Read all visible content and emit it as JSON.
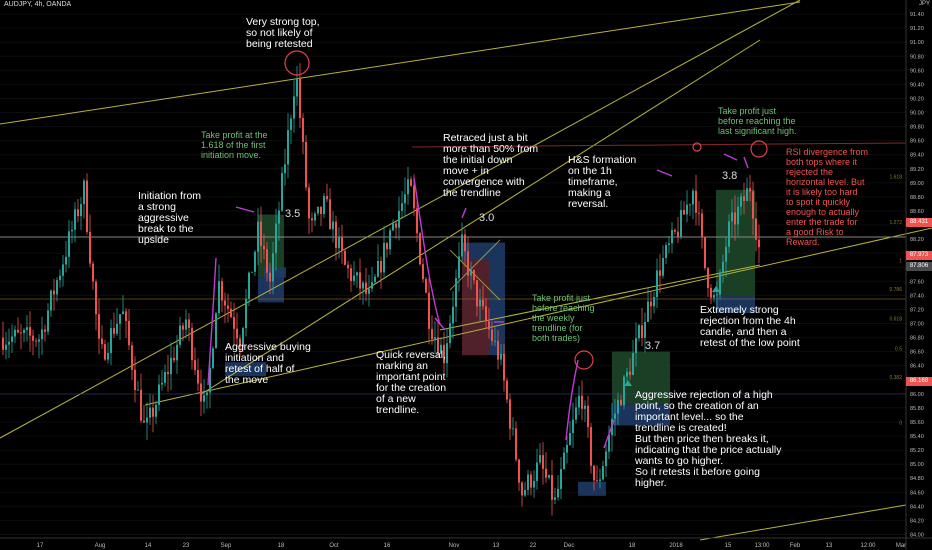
{
  "header": {
    "symbol": "AUDJPY, 4h, OANDA"
  },
  "axis": {
    "currency": "JPY"
  },
  "chart_data": {
    "type": "candlestick",
    "ylim": [
      83.95,
      91.6
    ],
    "y_ticks": [
      84.0,
      84.2,
      84.4,
      84.6,
      84.8,
      85.0,
      85.2,
      85.4,
      85.6,
      85.8,
      86.0,
      86.2,
      86.4,
      86.6,
      86.8,
      87.0,
      87.2,
      87.4,
      87.6,
      87.8,
      88.0,
      88.2,
      88.4,
      88.6,
      88.8,
      89.0,
      89.2,
      89.4,
      89.6,
      89.8,
      90.0,
      90.2,
      90.4,
      90.6,
      90.8,
      91.0,
      91.2,
      91.4
    ],
    "x_ticks": [
      "17",
      "Aug",
      "14",
      "23",
      "Sep",
      "18",
      "Oct",
      "16",
      "Nov",
      "13",
      "22",
      "Dec",
      "18",
      "2018",
      "15",
      "13:00",
      "Feb",
      "13",
      "12:00",
      "Mar"
    ],
    "x_tick_positions": [
      40,
      100,
      148,
      186,
      226,
      281,
      334,
      387,
      454,
      496,
      533,
      569,
      632,
      676,
      728,
      762,
      795,
      829,
      868,
      901
    ],
    "price_tags": [
      {
        "value": "88.431",
        "color": "#ef5350",
        "price": 88.43
      },
      {
        "value": "87.973",
        "color": "#ef5350",
        "price": 87.97
      },
      {
        "value": "87.806",
        "color": "#4a4a4a",
        "price": 87.81
      },
      {
        "value": "86.168",
        "color": "#ef5350",
        "price": 86.17
      }
    ],
    "fib_labels": [
      {
        "text": "1.618",
        "price": 89.05
      },
      {
        "text": "1.272",
        "price": 88.4
      },
      {
        "text": "1",
        "price": 87.85
      },
      {
        "text": "0.786",
        "price": 87.45
      },
      {
        "text": "0.618",
        "price": 87.03
      },
      {
        "text": "0.5",
        "price": 86.6
      },
      {
        "text": "0.382",
        "price": 86.2
      },
      {
        "text": "0",
        "price": 85.55
      }
    ],
    "key_points": [
      {
        "x": 40,
        "price": 86.8
      },
      {
        "x": 84,
        "price": 88.9
      },
      {
        "x": 100,
        "price": 86.5
      },
      {
        "x": 122,
        "price": 87.2
      },
      {
        "x": 145,
        "price": 85.45
      },
      {
        "x": 186,
        "price": 87.05
      },
      {
        "x": 206,
        "price": 85.7
      },
      {
        "x": 218,
        "price": 87.6
      },
      {
        "x": 240,
        "price": 86.8
      },
      {
        "x": 258,
        "price": 88.3
      },
      {
        "x": 270,
        "price": 87.6
      },
      {
        "x": 284,
        "price": 89.2
      },
      {
        "x": 296,
        "price": 90.6
      },
      {
        "x": 310,
        "price": 88.3
      },
      {
        "x": 325,
        "price": 88.7
      },
      {
        "x": 345,
        "price": 87.8
      },
      {
        "x": 370,
        "price": 87.35
      },
      {
        "x": 392,
        "price": 88.4
      },
      {
        "x": 410,
        "price": 88.95
      },
      {
        "x": 430,
        "price": 87.0
      },
      {
        "x": 444,
        "price": 86.55
      },
      {
        "x": 462,
        "price": 88.1
      },
      {
        "x": 478,
        "price": 87.3
      },
      {
        "x": 500,
        "price": 86.5
      },
      {
        "x": 522,
        "price": 84.6
      },
      {
        "x": 540,
        "price": 85.0
      },
      {
        "x": 555,
        "price": 84.45
      },
      {
        "x": 572,
        "price": 85.5
      },
      {
        "x": 581,
        "price": 86.05
      },
      {
        "x": 596,
        "price": 84.6
      },
      {
        "x": 612,
        "price": 85.6
      },
      {
        "x": 628,
        "price": 86.3
      },
      {
        "x": 645,
        "price": 87.1
      },
      {
        "x": 660,
        "price": 87.8
      },
      {
        "x": 680,
        "price": 88.4
      },
      {
        "x": 694,
        "price": 88.95
      },
      {
        "x": 705,
        "price": 87.8
      },
      {
        "x": 716,
        "price": 87.25
      },
      {
        "x": 728,
        "price": 88.3
      },
      {
        "x": 742,
        "price": 88.7
      },
      {
        "x": 750,
        "price": 88.95
      },
      {
        "x": 760,
        "price": 87.97
      }
    ],
    "ratio_boxes": [
      "3.5",
      "3.0",
      "3.7",
      "3.8"
    ]
  },
  "annotations": [
    {
      "id": "very-strong-top",
      "text": "Very strong top,\nso not likely of\nbeing retested",
      "style": "white"
    },
    {
      "id": "take-profit-1618",
      "text": "Take profit at the\n1.618 of the first\ninitiation move.",
      "style": "green"
    },
    {
      "id": "initiation",
      "text": "Initiation from\na strong\naggressive\nbreak to the\nupside",
      "style": "white"
    },
    {
      "id": "aggressive-buying",
      "text": "Aggressive buying\ninitiation and\nretest of half of\nthe move",
      "style": "white"
    },
    {
      "id": "retraced",
      "text": "Retraced just a bit\nmore than 50% from\nthe initial down\nmove + in\nconvergence with\nthe trendline",
      "style": "white"
    },
    {
      "id": "quick-reversal",
      "text": "Quick reversal,\nmarking an\nimportant point\nfor the creation\nof a new\ntrendline.",
      "style": "white"
    },
    {
      "id": "hs-formation",
      "text": "H&S formation\non the 1h\ntimeframe,\nmaking a\nreversal.",
      "style": "white"
    },
    {
      "id": "take-profit-weekly",
      "text": "Take profit just\nbefore reaching\nthe weekly\ntrendline (for\nboth trades)",
      "style": "green"
    },
    {
      "id": "take-profit-last",
      "text": "Take profit just\nbefore reaching the\nlast significant high.",
      "style": "green"
    },
    {
      "id": "rsi-divergence",
      "text": "RSI divergence from\nboth tops where it\nrejected the\nhorizontal level. But\nit is likely too hard\nto spot it quickly\nenough to actually\nenter the trade for\na good Risk to\nReward.",
      "style": "red"
    },
    {
      "id": "extremely-strong",
      "text": "Extremely strong\nrejection from the 4h\ncandle, and then a\nretest of the low point",
      "style": "white"
    },
    {
      "id": "aggressive-rejection",
      "text": "Aggressive rejection of a high\npoint, so the creation of an\nimportant level... so the\ntrendline is created!\nBut then price then breaks it,\nindicating that the price actually\nwants to go higher.\nSo it retests it before going\nhigher.",
      "style": "white"
    }
  ],
  "colors": {
    "up": "#26a69a",
    "down": "#ef5350",
    "trendline": "#b5b33a",
    "arrow": "#c03ad6",
    "background": "#000000",
    "profit_box": "#1e4a2c",
    "loss_box": "#5a1f22",
    "blue_box": "#1f3d6b"
  }
}
